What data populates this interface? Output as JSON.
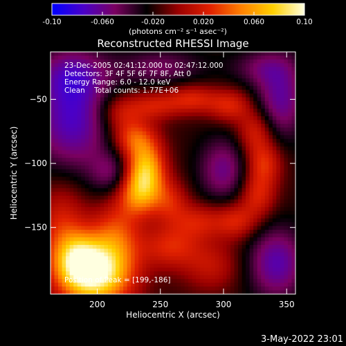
{
  "colorbar": {
    "ticks": [
      "-0.10",
      "-0.060",
      "-0.020",
      "0.020",
      "0.060",
      "0.10"
    ],
    "tick_values": [
      -0.1,
      -0.06,
      -0.02,
      0.02,
      0.06,
      0.1
    ],
    "range": [
      -0.1,
      0.1
    ],
    "units": "(photons cm⁻² s⁻¹ asec⁻²)",
    "stops": [
      "#0000ff",
      "#4a00c8",
      "#7a0060",
      "#000000",
      "#9a0000",
      "#e02000",
      "#ff8000",
      "#ffd000",
      "#ffffe0"
    ]
  },
  "chart_data": {
    "type": "heatmap",
    "title": "Reconstructed RHESSI Image",
    "xlabel": "Heliocentric X (arcsec)",
    "ylabel": "Heliocentric Y (arcsec)",
    "xlim": [
      163,
      357
    ],
    "ylim": [
      -202,
      -13
    ],
    "xticks": [
      200,
      250,
      300,
      350
    ],
    "yticks": [
      -50,
      -100,
      -150
    ],
    "annotations": [
      "23-Dec-2005 02:41:12.000 to 02:47:12.000",
      "Detectors: 3F 4F 5F 6F 7F 8F, Att 0",
      "Energy Range: 6.0 - 12.0 keV",
      "Clean    Total counts: 1.77E+06"
    ],
    "peak_label": "Position of Peak = [199,-186]",
    "peak": [
      199,
      -186
    ],
    "sources": [
      {
        "x": 199,
        "y": -186,
        "sx": 20,
        "sy": 18,
        "amp": 0.115
      },
      {
        "x": 185,
        "y": -175,
        "sx": 12,
        "sy": 14,
        "amp": 0.05
      },
      {
        "x": 172,
        "y": -150,
        "sx": 14,
        "sy": 26,
        "amp": 0.04
      },
      {
        "x": 215,
        "y": -155,
        "sx": 14,
        "sy": 18,
        "amp": 0.045
      },
      {
        "x": 238,
        "y": -105,
        "sx": 11,
        "sy": 16,
        "amp": 0.09
      },
      {
        "x": 232,
        "y": -125,
        "sx": 12,
        "sy": 12,
        "amp": 0.05
      },
      {
        "x": 228,
        "y": -80,
        "sx": 12,
        "sy": 10,
        "amp": 0.045
      },
      {
        "x": 218,
        "y": -60,
        "sx": 12,
        "sy": 10,
        "amp": 0.035
      },
      {
        "x": 245,
        "y": -55,
        "sx": 14,
        "sy": 8,
        "amp": 0.035
      },
      {
        "x": 275,
        "y": -50,
        "sx": 14,
        "sy": 8,
        "amp": 0.04
      },
      {
        "x": 305,
        "y": -55,
        "sx": 12,
        "sy": 9,
        "amp": 0.04
      },
      {
        "x": 325,
        "y": -75,
        "sx": 10,
        "sy": 12,
        "amp": 0.04
      },
      {
        "x": 332,
        "y": -100,
        "sx": 10,
        "sy": 12,
        "amp": 0.045
      },
      {
        "x": 327,
        "y": -125,
        "sx": 10,
        "sy": 12,
        "amp": 0.04
      },
      {
        "x": 310,
        "y": -145,
        "sx": 12,
        "sy": 10,
        "amp": 0.04
      },
      {
        "x": 280,
        "y": -145,
        "sx": 14,
        "sy": 10,
        "amp": 0.035
      },
      {
        "x": 258,
        "y": -130,
        "sx": 10,
        "sy": 12,
        "amp": 0.035
      },
      {
        "x": 258,
        "y": -165,
        "sx": 16,
        "sy": 12,
        "amp": 0.04
      },
      {
        "x": 290,
        "y": -180,
        "sx": 16,
        "sy": 14,
        "amp": 0.03
      },
      {
        "x": 300,
        "y": -105,
        "sx": 14,
        "sy": 18,
        "amp": -0.04
      },
      {
        "x": 180,
        "y": -65,
        "sx": 22,
        "sy": 30,
        "amp": -0.055
      },
      {
        "x": 180,
        "y": -30,
        "sx": 20,
        "sy": 14,
        "amp": -0.03
      },
      {
        "x": 212,
        "y": -108,
        "sx": 12,
        "sy": 12,
        "amp": -0.03
      },
      {
        "x": 345,
        "y": -50,
        "sx": 14,
        "sy": 22,
        "amp": -0.045
      },
      {
        "x": 342,
        "y": -178,
        "sx": 16,
        "sy": 20,
        "amp": -0.05
      },
      {
        "x": 250,
        "y": -25,
        "sx": 24,
        "sy": 10,
        "amp": -0.03
      },
      {
        "x": 330,
        "y": -25,
        "sx": 18,
        "sy": 10,
        "amp": -0.025
      }
    ],
    "background": -0.018
  },
  "footer": {
    "date": "3-May-2022 23:01"
  }
}
